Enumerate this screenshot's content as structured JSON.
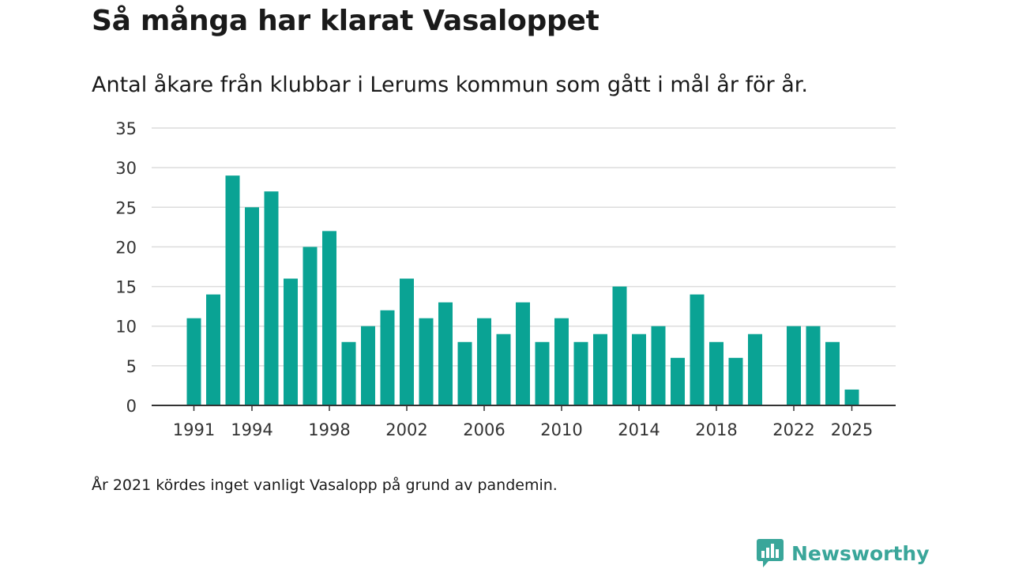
{
  "title": "Så många har klarat Vasaloppet",
  "subtitle": "Antal åkare från klubbar i Lerums kommun som gått i mål år för år.",
  "footnote": "År 2021 kördes inget vanligt Vasalopp på grund av pandemin.",
  "brand": {
    "name": "Newsworthy",
    "icon": "newsworthy-logo-icon",
    "color": "#3aa69a"
  },
  "colors": {
    "bar": "#0aa394",
    "grid": "#dcdcdc",
    "axis": "#333333"
  },
  "chart_data": {
    "type": "bar",
    "title": "Så många har klarat Vasaloppet",
    "xlabel": "",
    "ylabel": "",
    "ylim": [
      0,
      35
    ],
    "yticks": [
      0,
      5,
      10,
      15,
      20,
      25,
      30,
      35
    ],
    "xticks": [
      1991,
      1994,
      1998,
      2002,
      2006,
      2010,
      2014,
      2018,
      2022,
      2025
    ],
    "grid": true,
    "categories": [
      1991,
      1992,
      1993,
      1994,
      1995,
      1996,
      1997,
      1998,
      1999,
      2000,
      2001,
      2002,
      2003,
      2004,
      2005,
      2006,
      2007,
      2008,
      2009,
      2010,
      2011,
      2012,
      2013,
      2014,
      2015,
      2016,
      2017,
      2018,
      2019,
      2020,
      2021,
      2022,
      2023,
      2024,
      2025
    ],
    "values": [
      11,
      14,
      29,
      25,
      27,
      16,
      20,
      22,
      8,
      10,
      12,
      16,
      11,
      13,
      8,
      11,
      9,
      13,
      8,
      11,
      8,
      9,
      15,
      9,
      10,
      6,
      14,
      8,
      6,
      9,
      null,
      10,
      10,
      8,
      2
    ]
  }
}
